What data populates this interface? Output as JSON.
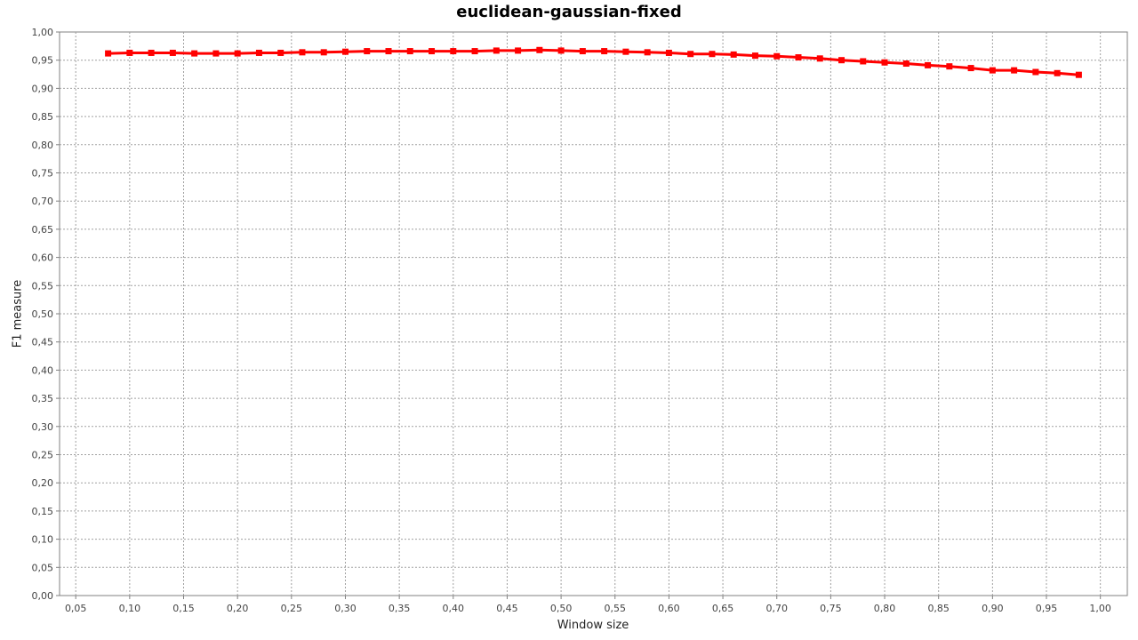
{
  "chart_data": {
    "type": "line",
    "title": "euclidean-gaussian-fixed",
    "xlabel": "Window size",
    "ylabel": "F1 measure",
    "xlim": [
      0.035,
      1.025
    ],
    "ylim": [
      0.0,
      1.0
    ],
    "x_ticks": [
      "0,05",
      "0,10",
      "0,15",
      "0,20",
      "0,25",
      "0,30",
      "0,35",
      "0,40",
      "0,45",
      "0,50",
      "0,55",
      "0,60",
      "0,65",
      "0,70",
      "0,75",
      "0,80",
      "0,85",
      "0,90",
      "0,95",
      "1,00"
    ],
    "y_ticks": [
      "0,00",
      "0,05",
      "0,10",
      "0,15",
      "0,20",
      "0,25",
      "0,30",
      "0,35",
      "0,40",
      "0,45",
      "0,50",
      "0,55",
      "0,60",
      "0,65",
      "0,70",
      "0,75",
      "0,80",
      "0,85",
      "0,90",
      "0,95",
      "1,00"
    ],
    "grid": true,
    "colors": {
      "series": "#ff0000",
      "grid": "#a0a0a0"
    },
    "series": [
      {
        "x": [
          0.08,
          0.1,
          0.12,
          0.14,
          0.16,
          0.18,
          0.2,
          0.22,
          0.24,
          0.26,
          0.28,
          0.3,
          0.32,
          0.34,
          0.36,
          0.38,
          0.4,
          0.42,
          0.44,
          0.46,
          0.48,
          0.5,
          0.52,
          0.54,
          0.56,
          0.58,
          0.6,
          0.62,
          0.64,
          0.66,
          0.68,
          0.7,
          0.72,
          0.74,
          0.76,
          0.78,
          0.8,
          0.82,
          0.84,
          0.86,
          0.88,
          0.9,
          0.92,
          0.94,
          0.96,
          0.98
        ],
        "values": [
          0.962,
          0.963,
          0.963,
          0.963,
          0.962,
          0.962,
          0.962,
          0.963,
          0.963,
          0.964,
          0.964,
          0.965,
          0.966,
          0.966,
          0.966,
          0.966,
          0.966,
          0.966,
          0.967,
          0.967,
          0.968,
          0.967,
          0.966,
          0.966,
          0.965,
          0.964,
          0.963,
          0.961,
          0.961,
          0.96,
          0.958,
          0.957,
          0.955,
          0.953,
          0.95,
          0.948,
          0.946,
          0.944,
          0.941,
          0.939,
          0.936,
          0.932,
          0.932,
          0.929,
          0.927,
          0.924
        ]
      }
    ]
  }
}
